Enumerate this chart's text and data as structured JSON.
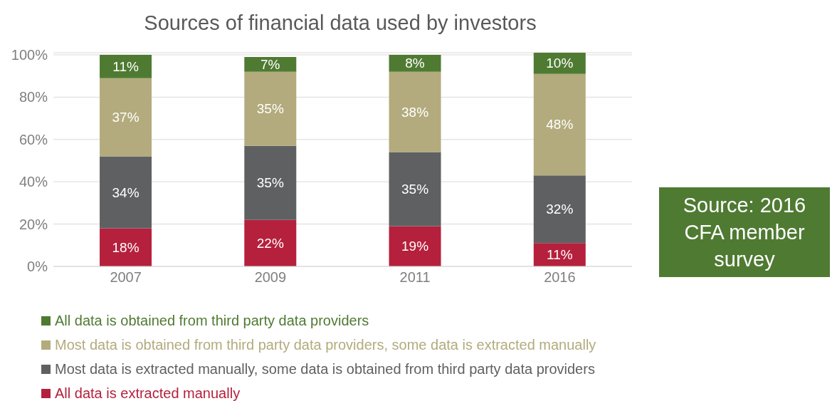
{
  "chart_data": {
    "type": "bar",
    "title": "Sources of financial data used by investors",
    "stacked": true,
    "categories": [
      "2007",
      "2009",
      "2011",
      "2016"
    ],
    "series": [
      {
        "name": "All data is extracted manually",
        "color": "#b5203c",
        "values": [
          18,
          22,
          19,
          11
        ],
        "value_labels": [
          "18%",
          "22%",
          "19%",
          "11%"
        ]
      },
      {
        "name": "Most data is extracted manually, some data is obtained from third party data providers",
        "color": "#5f6062",
        "values": [
          34,
          35,
          35,
          32
        ],
        "value_labels": [
          "34%",
          "35%",
          "35%",
          "32%"
        ]
      },
      {
        "name": "Most data is obtained from third party data providers, some data is extracted manually",
        "color": "#b3ab7d",
        "values": [
          37,
          35,
          38,
          48
        ],
        "value_labels": [
          "37%",
          "35%",
          "38%",
          "48%"
        ]
      },
      {
        "name": "All data is obtained from third party data providers",
        "color": "#4f7a32",
        "values": [
          11,
          7,
          8,
          10
        ],
        "value_labels": [
          "11%",
          "7%",
          "8%",
          "10%"
        ]
      }
    ],
    "ylim": [
      0,
      101
    ],
    "yticks": [
      {
        "value": 0,
        "label": "0%"
      },
      {
        "value": 20,
        "label": "20%"
      },
      {
        "value": 40,
        "label": "40%"
      },
      {
        "value": 60,
        "label": "60%"
      },
      {
        "value": 80,
        "label": "80%"
      },
      {
        "value": 100,
        "label": "100%"
      }
    ],
    "grid": "y",
    "legend": "bottom",
    "annotations": [
      "Source: 2016 CFA member survey"
    ]
  }
}
